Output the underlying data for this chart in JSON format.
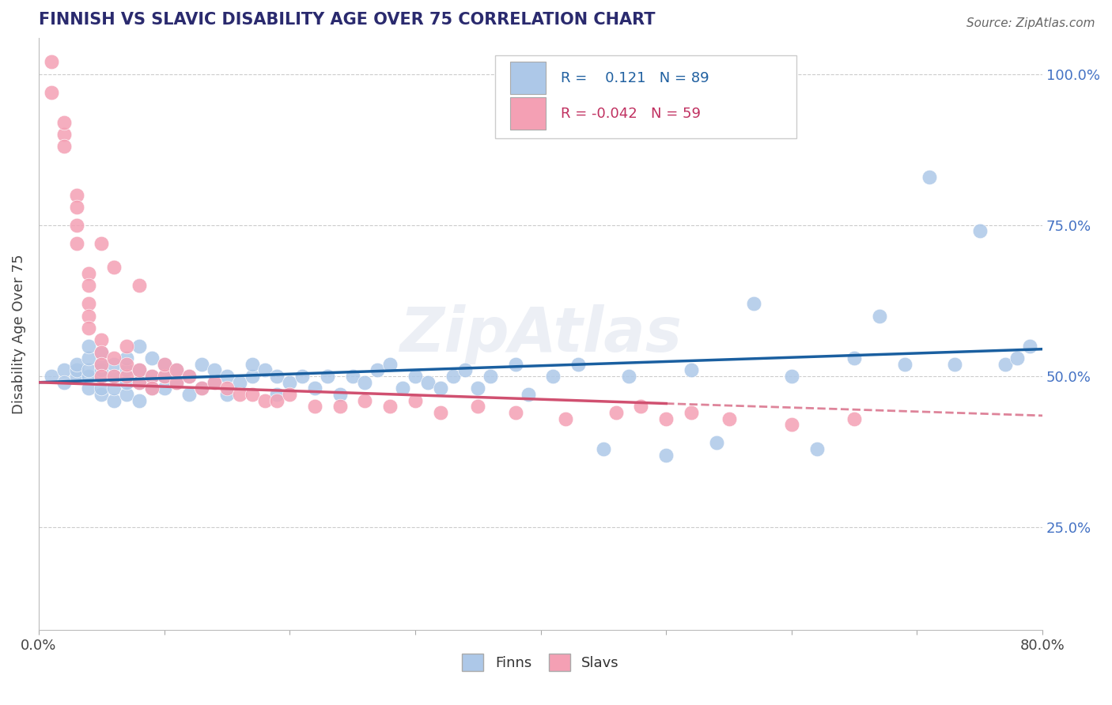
{
  "title": "FINNISH VS SLAVIC DISABILITY AGE OVER 75 CORRELATION CHART",
  "source": "Source: ZipAtlas.com",
  "ylabel": "Disability Age Over 75",
  "xmin": 0.0,
  "xmax": 0.8,
  "ymin": 0.08,
  "ymax": 1.06,
  "yticks": [
    0.25,
    0.5,
    0.75,
    1.0
  ],
  "ytick_labels": [
    "25.0%",
    "50.0%",
    "75.0%",
    "100.0%"
  ],
  "xticks": [
    0.0,
    0.1,
    0.2,
    0.3,
    0.4,
    0.5,
    0.6,
    0.7,
    0.8
  ],
  "finn_color": "#adc8e8",
  "slav_color": "#f4a0b4",
  "finn_line_color": "#1a5fa0",
  "slav_line_color": "#d05070",
  "finn_R": 0.121,
  "finn_N": 89,
  "slav_R": -0.042,
  "slav_N": 59,
  "legend_label_finn": "Finns",
  "legend_label_slav": "Slavs",
  "finns_x": [
    0.01,
    0.02,
    0.02,
    0.03,
    0.03,
    0.03,
    0.04,
    0.04,
    0.04,
    0.04,
    0.04,
    0.05,
    0.05,
    0.05,
    0.05,
    0.05,
    0.05,
    0.06,
    0.06,
    0.06,
    0.06,
    0.07,
    0.07,
    0.07,
    0.07,
    0.08,
    0.08,
    0.08,
    0.08,
    0.09,
    0.09,
    0.09,
    0.1,
    0.1,
    0.1,
    0.11,
    0.11,
    0.12,
    0.12,
    0.13,
    0.13,
    0.14,
    0.14,
    0.15,
    0.15,
    0.16,
    0.17,
    0.17,
    0.18,
    0.19,
    0.19,
    0.2,
    0.21,
    0.22,
    0.23,
    0.24,
    0.25,
    0.26,
    0.27,
    0.28,
    0.29,
    0.3,
    0.31,
    0.32,
    0.33,
    0.34,
    0.35,
    0.36,
    0.38,
    0.39,
    0.41,
    0.43,
    0.45,
    0.47,
    0.5,
    0.52,
    0.54,
    0.57,
    0.6,
    0.62,
    0.65,
    0.67,
    0.69,
    0.71,
    0.73,
    0.75,
    0.77,
    0.78,
    0.79
  ],
  "finns_y": [
    0.5,
    0.51,
    0.49,
    0.5,
    0.51,
    0.52,
    0.48,
    0.5,
    0.51,
    0.53,
    0.55,
    0.47,
    0.48,
    0.5,
    0.51,
    0.52,
    0.54,
    0.46,
    0.48,
    0.5,
    0.52,
    0.47,
    0.49,
    0.51,
    0.53,
    0.46,
    0.49,
    0.51,
    0.55,
    0.48,
    0.5,
    0.53,
    0.48,
    0.5,
    0.52,
    0.49,
    0.51,
    0.47,
    0.5,
    0.48,
    0.52,
    0.49,
    0.51,
    0.47,
    0.5,
    0.49,
    0.5,
    0.52,
    0.51,
    0.47,
    0.5,
    0.49,
    0.5,
    0.48,
    0.5,
    0.47,
    0.5,
    0.49,
    0.51,
    0.52,
    0.48,
    0.5,
    0.49,
    0.48,
    0.5,
    0.51,
    0.48,
    0.5,
    0.52,
    0.47,
    0.5,
    0.52,
    0.38,
    0.5,
    0.37,
    0.51,
    0.39,
    0.62,
    0.5,
    0.38,
    0.53,
    0.6,
    0.52,
    0.83,
    0.52,
    0.74,
    0.52,
    0.53,
    0.55
  ],
  "slavs_x": [
    0.01,
    0.01,
    0.02,
    0.02,
    0.02,
    0.03,
    0.03,
    0.03,
    0.03,
    0.04,
    0.04,
    0.04,
    0.04,
    0.04,
    0.05,
    0.05,
    0.05,
    0.05,
    0.05,
    0.06,
    0.06,
    0.06,
    0.07,
    0.07,
    0.07,
    0.08,
    0.08,
    0.08,
    0.09,
    0.09,
    0.1,
    0.1,
    0.11,
    0.11,
    0.12,
    0.13,
    0.14,
    0.15,
    0.16,
    0.17,
    0.18,
    0.19,
    0.2,
    0.22,
    0.24,
    0.26,
    0.28,
    0.3,
    0.32,
    0.35,
    0.38,
    0.42,
    0.46,
    0.48,
    0.5,
    0.52,
    0.55,
    0.6,
    0.65
  ],
  "slavs_y": [
    1.02,
    0.97,
    0.9,
    0.88,
    0.92,
    0.8,
    0.78,
    0.75,
    0.72,
    0.67,
    0.65,
    0.62,
    0.6,
    0.58,
    0.56,
    0.54,
    0.52,
    0.5,
    0.72,
    0.5,
    0.53,
    0.68,
    0.5,
    0.52,
    0.55,
    0.49,
    0.51,
    0.65,
    0.5,
    0.48,
    0.5,
    0.52,
    0.49,
    0.51,
    0.5,
    0.48,
    0.49,
    0.48,
    0.47,
    0.47,
    0.46,
    0.46,
    0.47,
    0.45,
    0.45,
    0.46,
    0.45,
    0.46,
    0.44,
    0.45,
    0.44,
    0.43,
    0.44,
    0.45,
    0.43,
    0.44,
    0.43,
    0.42,
    0.43
  ]
}
